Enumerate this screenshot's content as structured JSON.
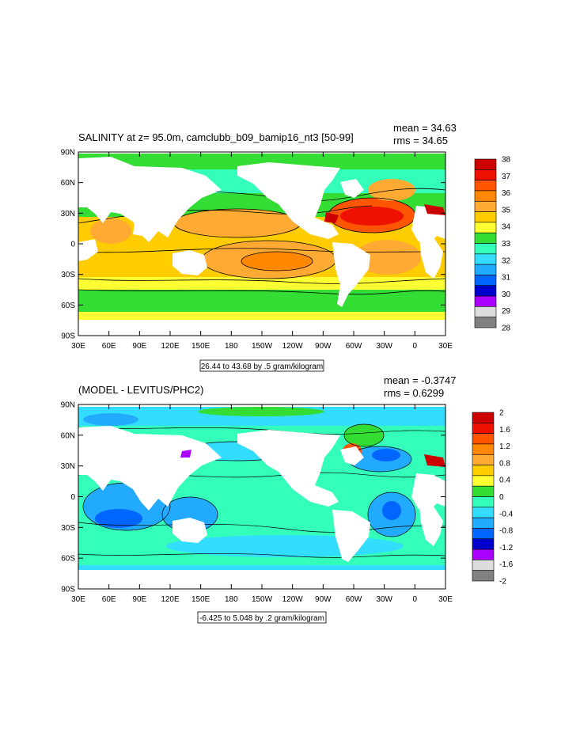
{
  "panels": [
    {
      "title": "SALINITY at z=  95.0m, camclubb_b09_bamip16_nt3 [50-99]",
      "mean": "mean = 34.63",
      "rms": "rms = 34.65",
      "contour_info": "26.44 to 43.68 by .5 gram/kilogram",
      "colorbar": {
        "labels": [
          "38",
          "37",
          "36",
          "35",
          "34",
          "33",
          "32",
          "31",
          "30",
          "29",
          "28"
        ],
        "colors": [
          "#cc0000",
          "#ee1100",
          "#ff5500",
          "#ff8800",
          "#ffaa33",
          "#ffcc00",
          "#ffff33",
          "#33dd33",
          "#33ffbb",
          "#33ddff",
          "#22aaff",
          "#0066ff",
          "#0000cc",
          "#aa00ff",
          "#dddddd",
          "#808080"
        ]
      }
    },
    {
      "title": "(MODEL - LEVITUS/PHC2)",
      "mean": "mean = -0.3747",
      "rms": "rms = 0.6299",
      "contour_info": "-6.425 to 5.048 by .2 gram/kilogram",
      "colorbar": {
        "labels": [
          "2",
          "1.6",
          "1.2",
          "0.8",
          "0.4",
          "0",
          "-0.4",
          "-0.8",
          "-1.2",
          "-1.6",
          "-2"
        ],
        "colors": [
          "#cc0000",
          "#ee1100",
          "#ff5500",
          "#ff8800",
          "#ffaa33",
          "#ffcc00",
          "#ffff33",
          "#33dd33",
          "#33ffbb",
          "#33ddff",
          "#22aaff",
          "#0066ff",
          "#0000cc",
          "#aa00ff",
          "#dddddd",
          "#808080"
        ]
      }
    }
  ],
  "axes": {
    "lat_labels": [
      "90N",
      "60N",
      "30N",
      "0",
      "30S",
      "60S",
      "90S"
    ],
    "lon_labels": [
      "30E",
      "60E",
      "90E",
      "120E",
      "150E",
      "180",
      "150W",
      "120W",
      "90W",
      "60W",
      "30W",
      "0",
      "30E"
    ]
  },
  "colors": {
    "land": "#ffffff"
  }
}
